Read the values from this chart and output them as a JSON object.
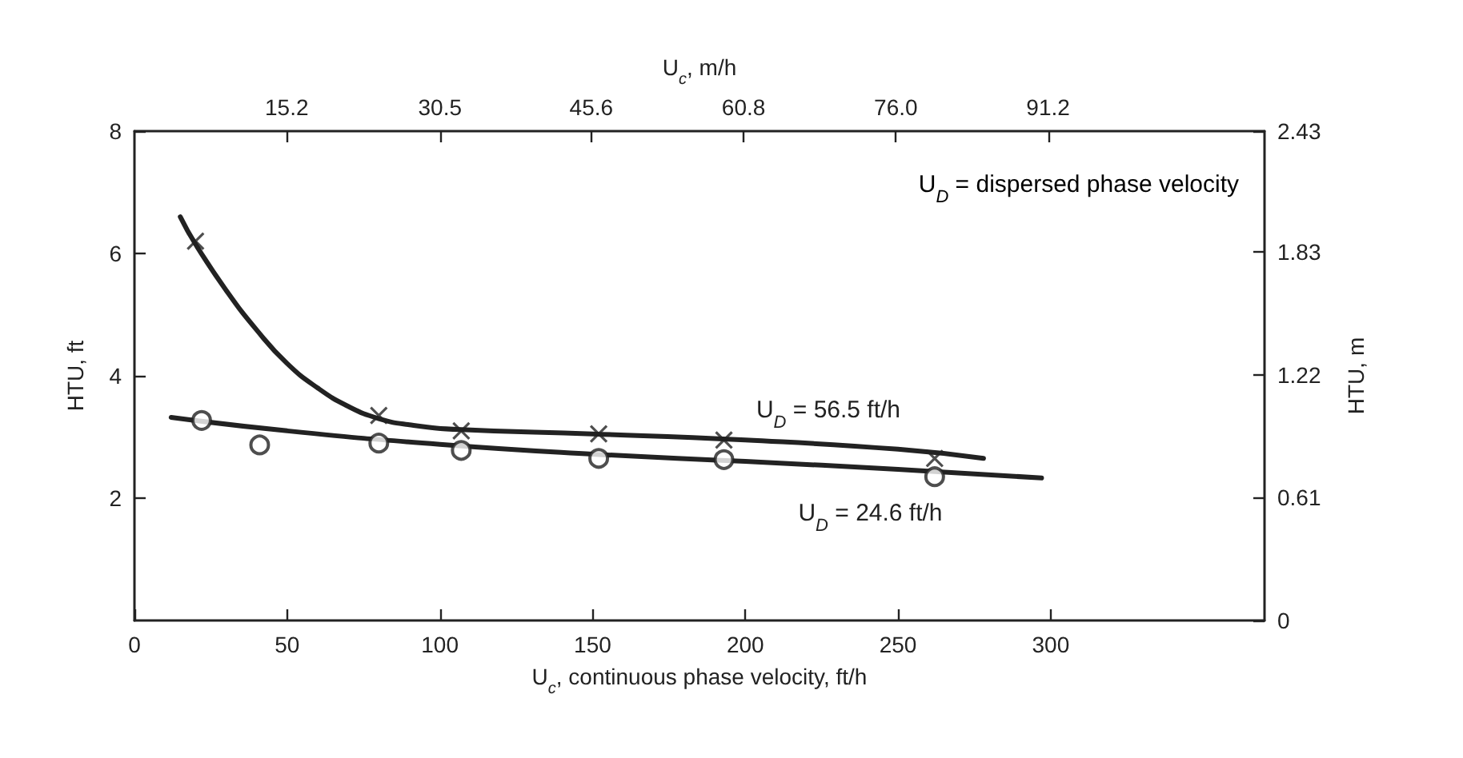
{
  "chart_data": {
    "type": "line",
    "xlabel": "U$_{c}$, continuous phase velocity, ft/h",
    "x2label": "U$_{c}$, m/h",
    "ylabel": "HTU, ft",
    "y2label": "HTU, m",
    "annotations": [
      "U$_{D}$ = dispersed phase velocity"
    ],
    "series": [
      {
        "type": "scatter",
        "marker": "cross",
        "color": "#222222",
        "x": [
          20,
          80,
          107,
          152,
          193,
          262
        ],
        "values": [
          6.2,
          3.35,
          3.1,
          3.05,
          2.95,
          2.65
        ]
      },
      {
        "type": "line",
        "name": "U$_{D}$ = 56.5 ft/h",
        "marker": "none",
        "color": "#222222",
        "x": [
          15,
          20,
          30,
          40,
          50,
          60,
          70,
          80,
          90,
          107,
          150,
          200,
          250,
          278
        ],
        "values": [
          6.6,
          6.15,
          5.4,
          4.75,
          4.2,
          3.8,
          3.5,
          3.3,
          3.2,
          3.12,
          3.05,
          2.95,
          2.8,
          2.65
        ]
      },
      {
        "type": "scatter",
        "marker": "circle",
        "color": "#222222",
        "x": [
          22,
          41,
          80,
          107,
          152,
          193,
          262
        ],
        "values": [
          3.27,
          2.87,
          2.9,
          2.78,
          2.65,
          2.63,
          2.35
        ]
      },
      {
        "type": "line",
        "name": "U$_{D}$ = 24.6 ft/h",
        "marker": "none",
        "color": "#222222",
        "x": [
          12,
          50,
          100,
          150,
          200,
          250,
          297
        ],
        "values": [
          3.32,
          3.1,
          2.88,
          2.72,
          2.6,
          2.47,
          2.33
        ]
      }
    ],
    "xlim": [
      0,
      370
    ],
    "xticks": [
      0,
      50,
      100,
      150,
      200,
      250,
      300
    ],
    "x2lim": [
      0,
      112.8
    ],
    "x2ticks": [
      15.2,
      30.5,
      45.6,
      60.8,
      {
        "value": 76,
        "label": "76.0"
      },
      91.2
    ],
    "ylim": [
      0,
      8
    ],
    "yticks": [
      2,
      4,
      6,
      8
    ],
    "y2lim": [
      0,
      2.43
    ],
    "y2ticks": [
      0,
      0.61,
      1.22,
      1.83,
      2.43
    ]
  }
}
